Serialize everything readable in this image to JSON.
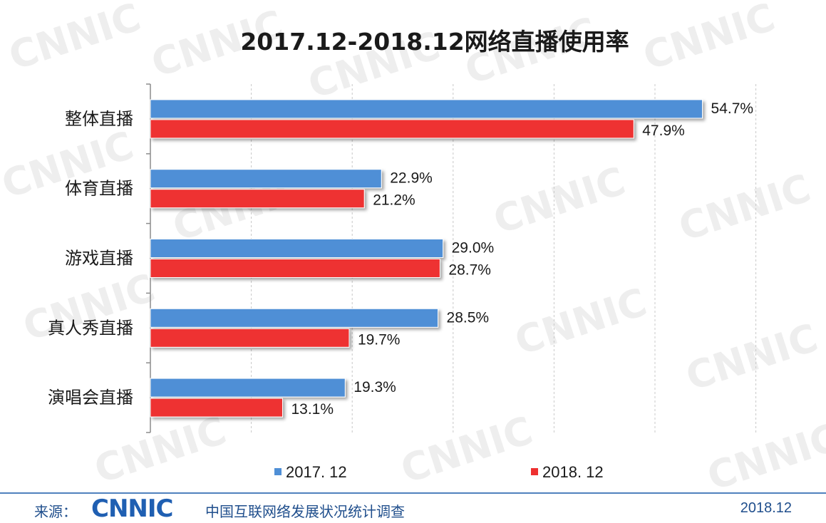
{
  "chart_data": {
    "type": "bar",
    "orientation": "horizontal",
    "title": "2017.12-2018.12网络直播使用率",
    "categories": [
      "整体直播",
      "体育直播",
      "游戏直播",
      "真人秀直播",
      "演唱会直播"
    ],
    "series": [
      {
        "name": "2017. 12",
        "values": [
          54.7,
          22.9,
          29.0,
          28.5,
          19.3
        ],
        "labels": [
          "54.7%",
          "22.9%",
          "29.0%",
          "28.5%",
          "19.3%"
        ],
        "color": "#4f8fd6"
      },
      {
        "name": "2018. 12",
        "values": [
          47.9,
          21.2,
          28.7,
          19.7,
          13.1
        ],
        "labels": [
          "47.9%",
          "21.2%",
          "28.7%",
          "19.7%",
          "13.1%"
        ],
        "color": "#ee3030"
      }
    ],
    "xlim": [
      0,
      60
    ],
    "grid": true,
    "legend_position": "bottom"
  },
  "footer": {
    "source_prefix": "来源：",
    "logo": "CNNIC",
    "organization": "中国互联网络发展状况统计调查",
    "date": "2018.12"
  },
  "watermark_text": "CNNIC"
}
